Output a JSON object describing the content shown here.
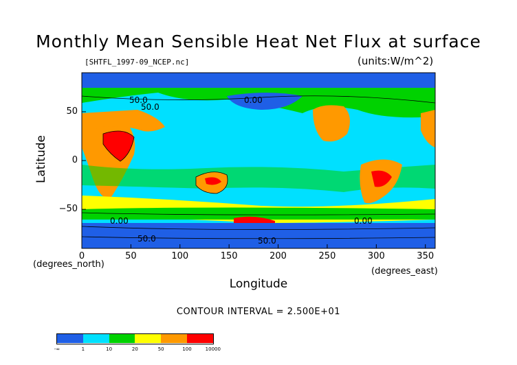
{
  "chart_data": {
    "type": "heatmap",
    "title": "Monthly Mean Sensible Heat Net Flux at surface",
    "subtitle_left": "[SHTFL_1997-09_NCEP.nc]",
    "subtitle_right": "(units:W/m^2)",
    "xlabel": "Longitude",
    "ylabel": "Latitude",
    "x_unit_label": "(degrees_east)",
    "y_unit_label": "(degrees_north)",
    "xlim": [
      0,
      360
    ],
    "ylim": [
      -90,
      90
    ],
    "x_ticks": [
      "0",
      "50",
      "100",
      "150",
      "200",
      "250",
      "300",
      "350"
    ],
    "y_ticks": [
      "50",
      "0",
      "−50"
    ],
    "contour_interval_text": "CONTOUR INTERVAL = 2.500E+01",
    "contour_labels": [
      "50.0",
      "50.0",
      "0.00",
      "0.00",
      "0.00",
      "50.0",
      "50.0"
    ],
    "colorbar": {
      "bounds": [
        "-∞",
        "1",
        "10",
        "20",
        "50",
        "100",
        "10000"
      ],
      "colors": [
        "#1f5fe6",
        "#00e0ff",
        "#00d200",
        "#ffff00",
        "#ff9900",
        "#ff0000"
      ]
    },
    "regions": [
      {
        "name": "polar-south",
        "bin": 0
      },
      {
        "name": "southern-ocean",
        "bin": 2
      },
      {
        "name": "tropics",
        "bin": 1
      },
      {
        "name": "africa-sahara",
        "bin": 4
      },
      {
        "name": "australia",
        "bin": 4
      },
      {
        "name": "north-america",
        "bin": 4
      },
      {
        "name": "south-america",
        "bin": 4
      },
      {
        "name": "arctic",
        "bin": 0
      }
    ]
  }
}
